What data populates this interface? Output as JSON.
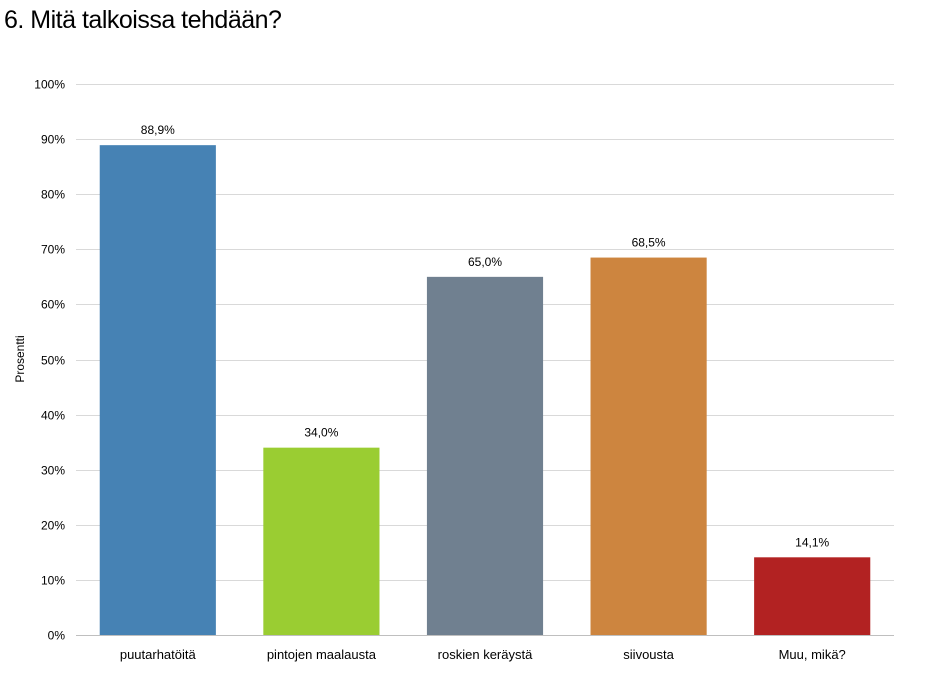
{
  "chart_data": {
    "type": "bar",
    "title": "6. Mitä talkoissa tehdään?",
    "ylabel": "Prosentti",
    "xlabel": "",
    "categories": [
      "puutarhatöitä",
      "pintojen maalausta",
      "roskien keräystä",
      "siivousta",
      "Muu, mikä?"
    ],
    "values": [
      88.9,
      34.0,
      65.0,
      68.5,
      14.1
    ],
    "value_labels": [
      "88,9%",
      "34,0%",
      "65,0%",
      "68,5%",
      "14,1%"
    ],
    "colors": [
      "#4682B4",
      "#9ACD32",
      "#708090",
      "#CD853F",
      "#B22222"
    ],
    "ylim": [
      0,
      100
    ],
    "yticks": [
      0,
      10,
      20,
      30,
      40,
      50,
      60,
      70,
      80,
      90,
      100
    ],
    "ytick_labels": [
      "0%",
      "10%",
      "20%",
      "30%",
      "40%",
      "50%",
      "60%",
      "70%",
      "80%",
      "90%",
      "100%"
    ],
    "grid": true,
    "gridline_color": "#d9d9d9",
    "legend": "none"
  }
}
